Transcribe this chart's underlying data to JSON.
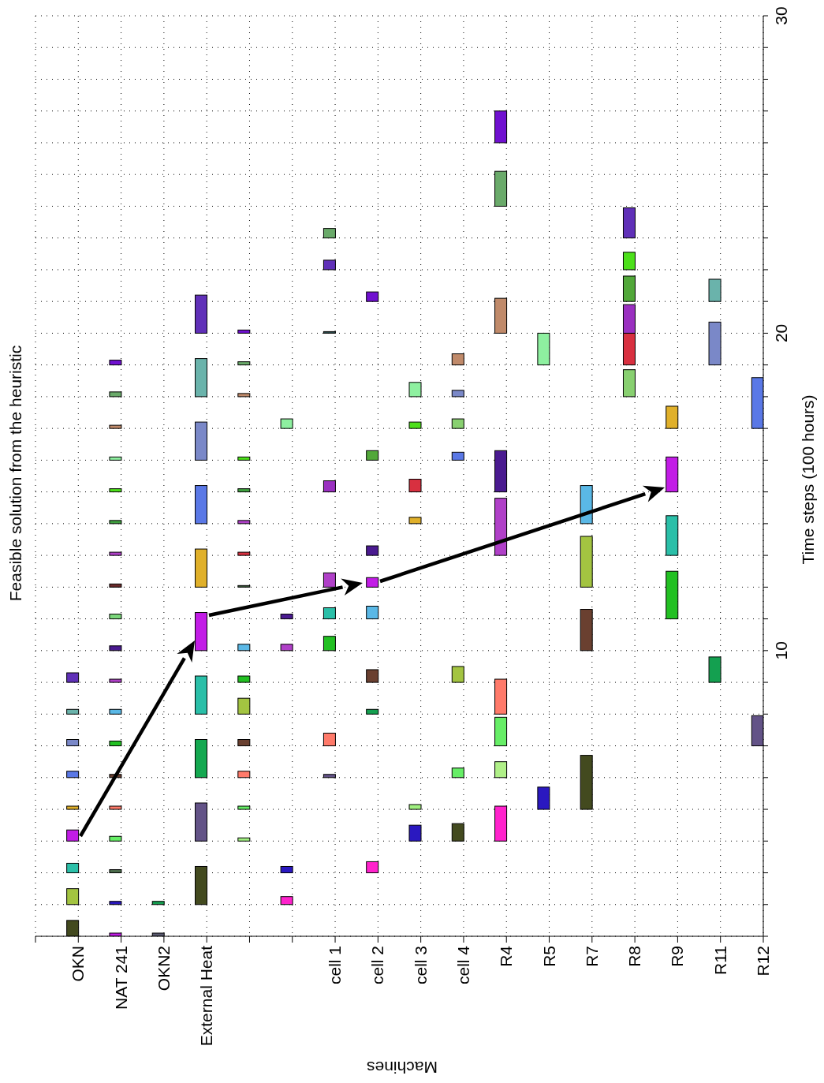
{
  "chart_data": {
    "type": "bar",
    "title": "Feasible solution from the heuristic",
    "xlabel": "Machines",
    "ylabel": "Time steps (100 hours)",
    "categories": [
      "OKN",
      "NAT 241",
      "OKN2",
      "External Heat",
      null,
      null,
      "cell 1",
      "cell 2",
      "cell 3",
      "cell 4",
      "R4",
      "R5",
      "R7",
      "R8",
      "R9",
      "R11",
      "R12"
    ],
    "ylim": [
      1,
      30
    ],
    "yticks": [
      {
        "value": 1,
        "label": null
      },
      {
        "value": 2,
        "label": null
      },
      {
        "value": 3,
        "label": null
      },
      {
        "value": 4,
        "label": null
      },
      {
        "value": 5,
        "label": null
      },
      {
        "value": 6,
        "label": null
      },
      {
        "value": 7,
        "label": null
      },
      {
        "value": 8,
        "label": null
      },
      {
        "value": 9,
        "label": null
      },
      10,
      {
        "value": 11,
        "label": null
      },
      {
        "value": 12,
        "label": null
      },
      {
        "value": 13,
        "label": null
      },
      {
        "value": 14,
        "label": null
      },
      {
        "value": 15,
        "label": null
      },
      {
        "value": 16,
        "label": null
      },
      {
        "value": 17,
        "label": null
      },
      {
        "value": 18,
        "label": null
      },
      {
        "value": 19,
        "label": null
      },
      20,
      {
        "value": 21,
        "label": null
      },
      {
        "value": 22,
        "label": null
      },
      {
        "value": 23,
        "label": null
      },
      {
        "value": 24,
        "label": null
      },
      {
        "value": 25,
        "label": null
      },
      {
        "value": 26,
        "label": null
      },
      {
        "value": 27,
        "label": null
      },
      {
        "value": 28,
        "label": null
      },
      {
        "value": 29,
        "label": null
      },
      30
    ],
    "grid": true,
    "series": [
      {
        "base": [
          1,
          1,
          1,
          2,
          4,
          2,
          6,
          3,
          4,
          4,
          4,
          5,
          5,
          18,
          11,
          9,
          7
        ],
        "values": [
          0.5,
          0.1,
          0.1,
          1.2,
          0.1,
          0.25,
          0.1,
          0.35,
          0.5,
          0.55,
          1.1,
          0.7,
          1.7,
          0.85,
          1.5,
          0.8,
          0.95
        ],
        "colors": [
          "#434a1f",
          "#c21ce6",
          "#5a5a70",
          "#434a1f",
          "#a0f080",
          "#ff22cc",
          "#635387",
          "#ff22cc",
          "#2a18c0",
          "#434a1f",
          "#ff22cc",
          "#2a18c0",
          "#434a1f",
          "#88d070",
          "#22c022",
          "#14a050",
          "#635387"
        ]
      },
      {
        "base": [
          2,
          2,
          2,
          4,
          5,
          3,
          7,
          8,
          5,
          6,
          6,
          19,
          10,
          19,
          13,
          19,
          17
        ],
        "values": [
          0.5,
          0.1,
          0.1,
          1.2,
          0.1,
          0.2,
          0.4,
          0.15,
          0.15,
          0.3,
          0.5,
          1,
          1.3,
          1,
          1.25,
          1.35,
          1.6
        ],
        "colors": [
          "#a3c441",
          "#2a18c0",
          "#14a050",
          "#635387",
          "#66ee66",
          "#2a18c0",
          "#ff7a6a",
          "#14a050",
          "#a0f080",
          "#66ee66",
          "#b0f088",
          "#8ef0a0",
          "#6a4030",
          "#d83040",
          "#2abfa8",
          "#7a88c8",
          "#5a78e6"
        ]
      },
      {
        "base": [
          3,
          3,
          null,
          6,
          6,
          10,
          10,
          9,
          14,
          9,
          7,
          null,
          12,
          20,
          15,
          21,
          null
        ],
        "values": [
          0.3,
          0.1,
          null,
          1.2,
          0.2,
          0.2,
          0.45,
          0.4,
          0.2,
          0.5,
          0.9,
          null,
          1.6,
          0.9,
          1.1,
          0.7,
          null
        ],
        "colors": [
          "#2bbfa8",
          "#4a6a4a",
          null,
          "#14a850",
          "#ff7a6a",
          "#b040c8",
          "#22c022",
          "#6a4030",
          "#e0b02a",
          "#a3c441",
          "#66ee66",
          null,
          "#a3c441",
          "#9a30c0",
          "#c21ce6",
          "#6ab3ab",
          null
        ]
      },
      {
        "base": [
          4,
          4,
          null,
          8,
          7,
          11,
          11,
          11,
          15,
          16,
          8,
          null,
          14,
          21,
          17,
          null,
          null
        ],
        "values": [
          0.35,
          0.15,
          null,
          1.2,
          0.2,
          0.15,
          0.35,
          0.4,
          0.4,
          0.25,
          1.1,
          null,
          1.2,
          0.8,
          0.7,
          null,
          null
        ],
        "colors": [
          "#c21ce6",
          "#66ee66",
          null,
          "#2abfa8",
          "#6a4030",
          "#4a1a90",
          "#2abfa8",
          "#5ab8e6",
          "#d83040",
          "#5a78e6",
          "#ff7a6a",
          null,
          "#5ab8e6",
          "#52a83a",
          "#e0b02a",
          null,
          null
        ]
      },
      {
        "base": [
          5,
          5,
          null,
          10,
          8,
          17,
          12,
          12,
          17,
          17,
          13,
          null,
          null,
          22,
          null,
          null,
          null
        ],
        "values": [
          0.1,
          0.1,
          null,
          1.2,
          0.5,
          0.3,
          0.45,
          0.3,
          0.2,
          0.3,
          1.8,
          null,
          null,
          0.55,
          null,
          null,
          null
        ],
        "colors": [
          "#e0b02a",
          "#ff7a6a",
          null,
          "#c21ce6",
          "#a3c441",
          "#8ef0a0",
          "#b040c8",
          "#c21ce6",
          "#4ce01a",
          "#88d070",
          "#b040c8",
          null,
          null,
          "#4ce01a",
          null,
          null,
          null
        ]
      },
      {
        "base": [
          6,
          6,
          null,
          12,
          9,
          null,
          15,
          13,
          18,
          18,
          15,
          null,
          null,
          23,
          null,
          null,
          null
        ],
        "values": [
          0.2,
          0.1,
          null,
          1.2,
          0.2,
          null,
          0.35,
          0.3,
          0.45,
          0.2,
          1.3,
          null,
          null,
          0.95,
          null,
          null,
          null
        ],
        "colors": [
          "#5a78e6",
          "#6a4030",
          null,
          "#e0b02a",
          "#22c022",
          null,
          "#9a30c0",
          "#4a1a90",
          "#8ef0a0",
          "#7a88c8",
          "#4a1a90",
          null,
          null,
          "#6030b8",
          null,
          null,
          null
        ]
      },
      {
        "base": [
          7,
          7,
          null,
          14,
          10,
          null,
          20,
          16,
          null,
          19,
          20,
          null,
          null,
          null,
          null,
          null,
          null
        ],
        "values": [
          0.2,
          0.15,
          null,
          1.2,
          0.2,
          null,
          0.05,
          0.3,
          null,
          0.35,
          1.1,
          null,
          null,
          null,
          null,
          null,
          null
        ],
        "colors": [
          "#7a88c8",
          "#22c022",
          null,
          "#5a78e6",
          "#5ab8e6",
          null,
          "#2a4a4a",
          "#52a83a",
          null,
          "#c08a6a",
          "#c08a6a",
          null,
          null,
          null,
          null,
          null,
          null
        ]
      },
      {
        "base": [
          8,
          8,
          null,
          16,
          12,
          null,
          22,
          21,
          null,
          null,
          24,
          null,
          null,
          null,
          null,
          null,
          null
        ],
        "values": [
          0.15,
          0.15,
          null,
          1.2,
          0.05,
          null,
          0.3,
          0.3,
          null,
          null,
          1.1,
          null,
          null,
          null,
          null,
          null,
          null
        ],
        "colors": [
          "#6ab3ab",
          "#5ab8e6",
          null,
          "#7a88c8",
          "#3a5a3a",
          null,
          "#6030b8",
          "#7010d0",
          null,
          null,
          "#6aaa6a",
          null,
          null,
          null,
          null,
          null,
          null
        ]
      },
      {
        "base": [
          9,
          9,
          null,
          18,
          13,
          null,
          23,
          null,
          null,
          null,
          26,
          null,
          null,
          null,
          null,
          null,
          null
        ],
        "values": [
          0.3,
          0.1,
          null,
          1.2,
          0.1,
          null,
          0.3,
          null,
          null,
          null,
          1,
          null,
          null,
          null,
          null,
          null,
          null
        ],
        "colors": [
          "#6030b8",
          "#b040c8",
          null,
          "#6ab3ab",
          "#d83040",
          null,
          "#6aaa6a",
          null,
          null,
          null,
          "#7010d0",
          null,
          null,
          null,
          null,
          null,
          null
        ]
      },
      {
        "base": [
          null,
          10,
          null,
          20,
          14,
          null,
          null,
          null,
          null,
          null,
          null,
          null,
          null,
          null,
          null,
          null,
          null
        ],
        "values": [
          null,
          0.15,
          null,
          1.2,
          0.1,
          null,
          null,
          null,
          null,
          null,
          null,
          null,
          null,
          null,
          null,
          null,
          null
        ],
        "colors": [
          null,
          "#4a1a90",
          null,
          "#6030b8",
          "#b040c8",
          null,
          null,
          null,
          null,
          null,
          null,
          null,
          null,
          null,
          null,
          null,
          null
        ]
      },
      {
        "base": [
          null,
          11,
          null,
          null,
          15,
          null,
          null,
          null,
          null,
          null,
          null,
          null,
          null,
          null,
          null,
          null,
          null
        ],
        "values": [
          null,
          0.15,
          null,
          null,
          0.1,
          null,
          null,
          null,
          null,
          null,
          null,
          null,
          null,
          null,
          null,
          null,
          null
        ],
        "colors": [
          null,
          "#7ad67a",
          null,
          null,
          "#3ea03e",
          null,
          null,
          null,
          null,
          null,
          null,
          null,
          null,
          null,
          null,
          null,
          null
        ]
      },
      {
        "base": [
          null,
          12,
          null,
          null,
          16,
          null,
          null,
          null,
          null,
          null,
          null,
          null,
          null,
          null,
          null,
          null,
          null
        ],
        "values": [
          null,
          0.1,
          null,
          null,
          0.1,
          null,
          null,
          null,
          null,
          null,
          null,
          null,
          null,
          null,
          null,
          null,
          null
        ],
        "colors": [
          null,
          "#6a2a2a",
          null,
          null,
          "#4ce01a",
          null,
          null,
          null,
          null,
          null,
          null,
          null,
          null,
          null,
          null,
          null,
          null
        ]
      },
      {
        "base": [
          null,
          13,
          null,
          null,
          18,
          null,
          null,
          null,
          null,
          null,
          null,
          null,
          null,
          null,
          null,
          null,
          null
        ],
        "values": [
          null,
          0.1,
          null,
          null,
          0.1,
          null,
          null,
          null,
          null,
          null,
          null,
          null,
          null,
          null,
          null,
          null,
          null
        ],
        "colors": [
          null,
          "#b040c8",
          null,
          null,
          "#c08a6a",
          null,
          null,
          null,
          null,
          null,
          null,
          null,
          null,
          null,
          null,
          null,
          null
        ]
      },
      {
        "base": [
          null,
          14,
          null,
          null,
          19,
          null,
          null,
          null,
          null,
          null,
          null,
          null,
          null,
          null,
          null,
          null,
          null
        ],
        "values": [
          null,
          0.1,
          null,
          null,
          0.1,
          null,
          null,
          null,
          null,
          null,
          null,
          null,
          null,
          null,
          null,
          null,
          null
        ],
        "colors": [
          null,
          "#3ea03e",
          null,
          null,
          "#6aaa6a",
          null,
          null,
          null,
          null,
          null,
          null,
          null,
          null,
          null,
          null,
          null,
          null
        ]
      },
      {
        "base": [
          null,
          15,
          null,
          null,
          20,
          null,
          null,
          null,
          null,
          null,
          null,
          null,
          null,
          null,
          null,
          null,
          null
        ],
        "values": [
          null,
          0.1,
          null,
          null,
          0.1,
          null,
          null,
          null,
          null,
          null,
          null,
          null,
          null,
          null,
          null,
          null,
          null
        ],
        "colors": [
          null,
          "#4ce01a",
          null,
          null,
          "#7010d0",
          null,
          null,
          null,
          null,
          null,
          null,
          null,
          null,
          null,
          null,
          null,
          null
        ]
      },
      {
        "base": [
          null,
          16,
          null,
          null,
          null,
          null,
          null,
          null,
          null,
          null,
          null,
          null,
          null,
          null,
          null,
          null,
          null
        ],
        "values": [
          null,
          0.1,
          null,
          null,
          null,
          null,
          null,
          null,
          null,
          null,
          null,
          null,
          null,
          null,
          null,
          null,
          null
        ],
        "colors": [
          null,
          "#8ef0a0",
          null,
          null,
          null,
          null,
          null,
          null,
          null,
          null,
          null,
          null,
          null,
          null,
          null,
          null,
          null
        ]
      },
      {
        "base": [
          null,
          17,
          null,
          null,
          null,
          null,
          null,
          null,
          null,
          null,
          null,
          null,
          null,
          null,
          null,
          null,
          null
        ],
        "values": [
          null,
          0.1,
          null,
          null,
          null,
          null,
          null,
          null,
          null,
          null,
          null,
          null,
          null,
          null,
          null,
          null,
          null
        ],
        "colors": [
          null,
          "#c08a6a",
          null,
          null,
          null,
          null,
          null,
          null,
          null,
          null,
          null,
          null,
          null,
          null,
          null,
          null,
          null
        ]
      },
      {
        "base": [
          null,
          18,
          null,
          null,
          null,
          null,
          null,
          null,
          null,
          null,
          null,
          null,
          null,
          null,
          null,
          null,
          null
        ],
        "values": [
          null,
          0.15,
          null,
          null,
          null,
          null,
          null,
          null,
          null,
          null,
          null,
          null,
          null,
          null,
          null,
          null,
          null
        ],
        "colors": [
          null,
          "#6aaa6a",
          null,
          null,
          null,
          null,
          null,
          null,
          null,
          null,
          null,
          null,
          null,
          null,
          null,
          null,
          null
        ]
      },
      {
        "base": [
          null,
          19,
          null,
          null,
          null,
          null,
          null,
          null,
          null,
          null,
          null,
          null,
          null,
          null,
          null,
          null,
          null
        ],
        "values": [
          null,
          0.15,
          null,
          null,
          null,
          null,
          null,
          null,
          null,
          null,
          null,
          null,
          null,
          null,
          null,
          null,
          null
        ],
        "colors": [
          null,
          "#7010d0",
          null,
          null,
          null,
          null,
          null,
          null,
          null,
          null,
          null,
          null,
          null,
          null,
          null,
          null,
          null
        ]
      }
    ]
  }
}
